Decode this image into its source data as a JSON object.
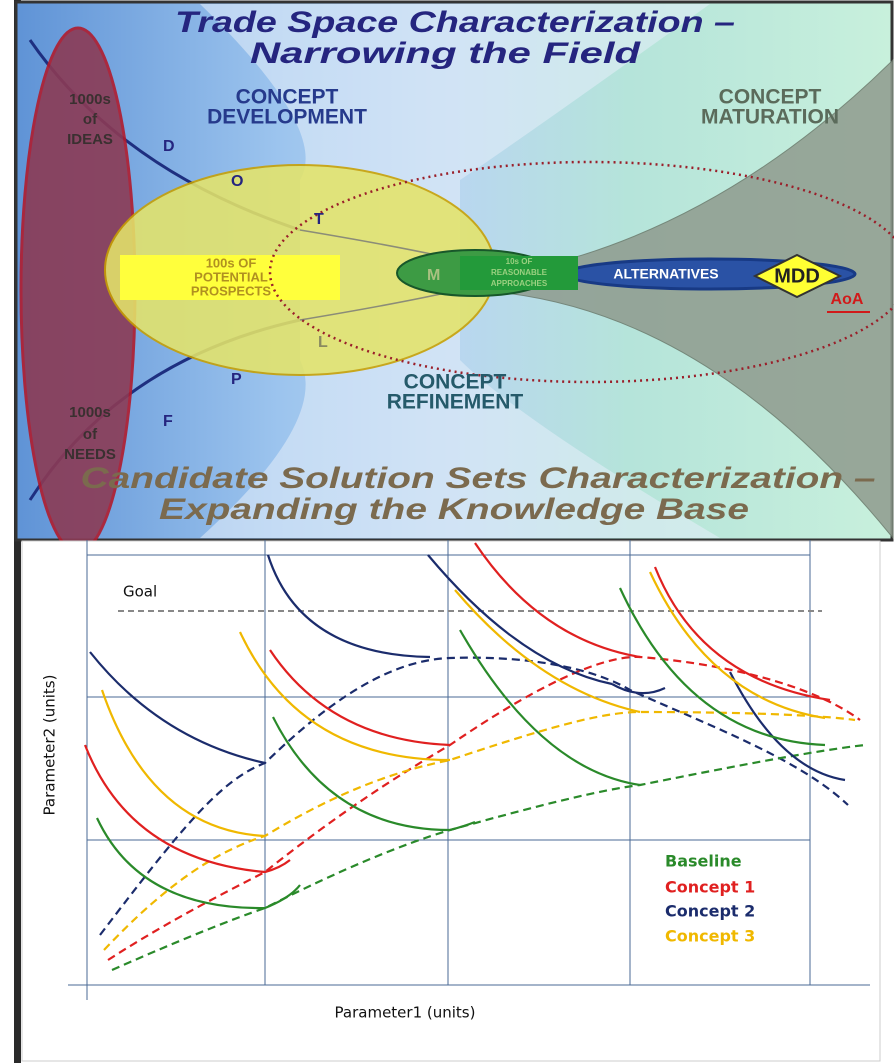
{
  "header": {
    "title_lines": [
      "Trade Space Characterization –",
      "Narrowing the Field"
    ]
  },
  "funnel": {
    "ideas": [
      "1000s",
      "of",
      "IDEAS"
    ],
    "needs": [
      "1000s",
      "of",
      "NEEDS"
    ],
    "development": [
      "CONCEPT",
      "DEVELOPMENT"
    ],
    "maturation": [
      "CONCEPT",
      "MATURATION"
    ],
    "refinement": [
      "CONCEPT",
      "REFINEMENT"
    ],
    "letters": [
      "D",
      "O",
      "T",
      "M",
      "L",
      "P",
      "F"
    ],
    "prospects": [
      "100s OF",
      "POTENTIAL",
      "PROSPECTS"
    ],
    "approaches": [
      "10s OF",
      "REASONABLE",
      "APPROACHES"
    ],
    "alternatives": "ALTERNATIVES",
    "mdd": "MDD",
    "aoa": "AoA"
  },
  "footer": {
    "title_lines": [
      "Candidate Solution Sets Characterization –",
      "Expanding the Knowledge Base"
    ]
  },
  "tradeoff_chart": {
    "goal": "Goal",
    "y_label": "Parameter2 (units)",
    "x_label": "Parameter1 (units)",
    "legend": [
      "Baseline",
      "Concept 1",
      "Concept 2",
      "Concept 3"
    ]
  }
}
